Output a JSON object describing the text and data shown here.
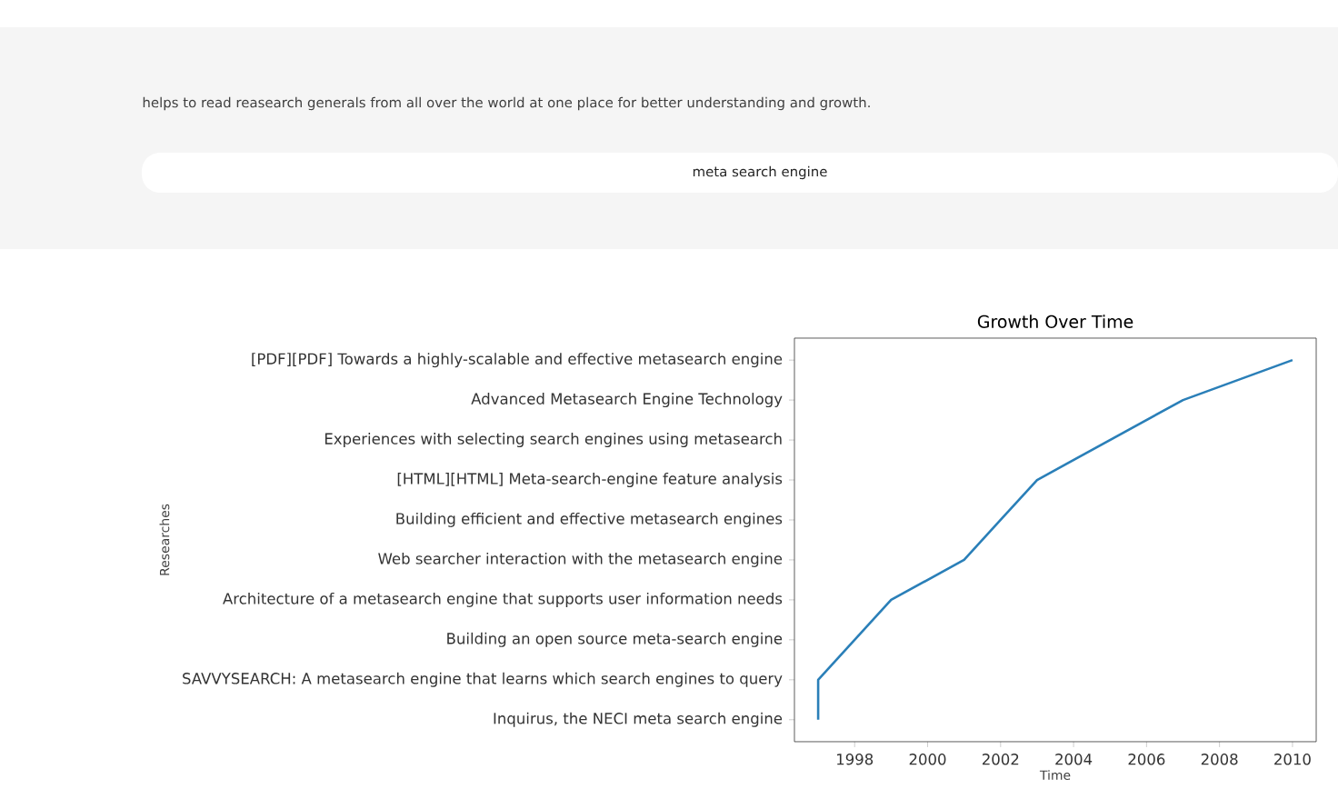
{
  "chart_data": {
    "type": "line",
    "orientation": "horizontal",
    "title": "Growth Over Time",
    "xlabel": "Time",
    "ylabel": "Researches",
    "categories": [
      "[PDF][PDF] Towards a highly-scalable and effective metasearch engine",
      "Advanced Metasearch Engine Technology",
      "Experiences with selecting search engines using metasearch",
      "[HTML][HTML] Meta-search-engine feature analysis",
      "Building efficient and effective metasearch engines",
      "Web searcher interaction with the metasearch engine",
      "Architecture of a metasearch engine that supports user information needs",
      "Building an open source meta-search engine",
      "SAVVYSEARCH: A metasearch engine that learns which search engines to query",
      "Inquirus, the NECI meta search engine"
    ],
    "values": [
      2010,
      2007,
      2005,
      2003,
      2002,
      2001,
      1999,
      1998,
      1997,
      1997
    ],
    "color": "#2a7fb8",
    "xlim": [
      1996.35,
      2010.65
    ],
    "xticks": [
      1998,
      2000,
      2002,
      2004,
      2006,
      2008,
      2010
    ],
    "annotations": [
      "helps to read reasearch generals from all over the world at one place for better understanding and growth.",
      "meta search engine"
    ]
  }
}
